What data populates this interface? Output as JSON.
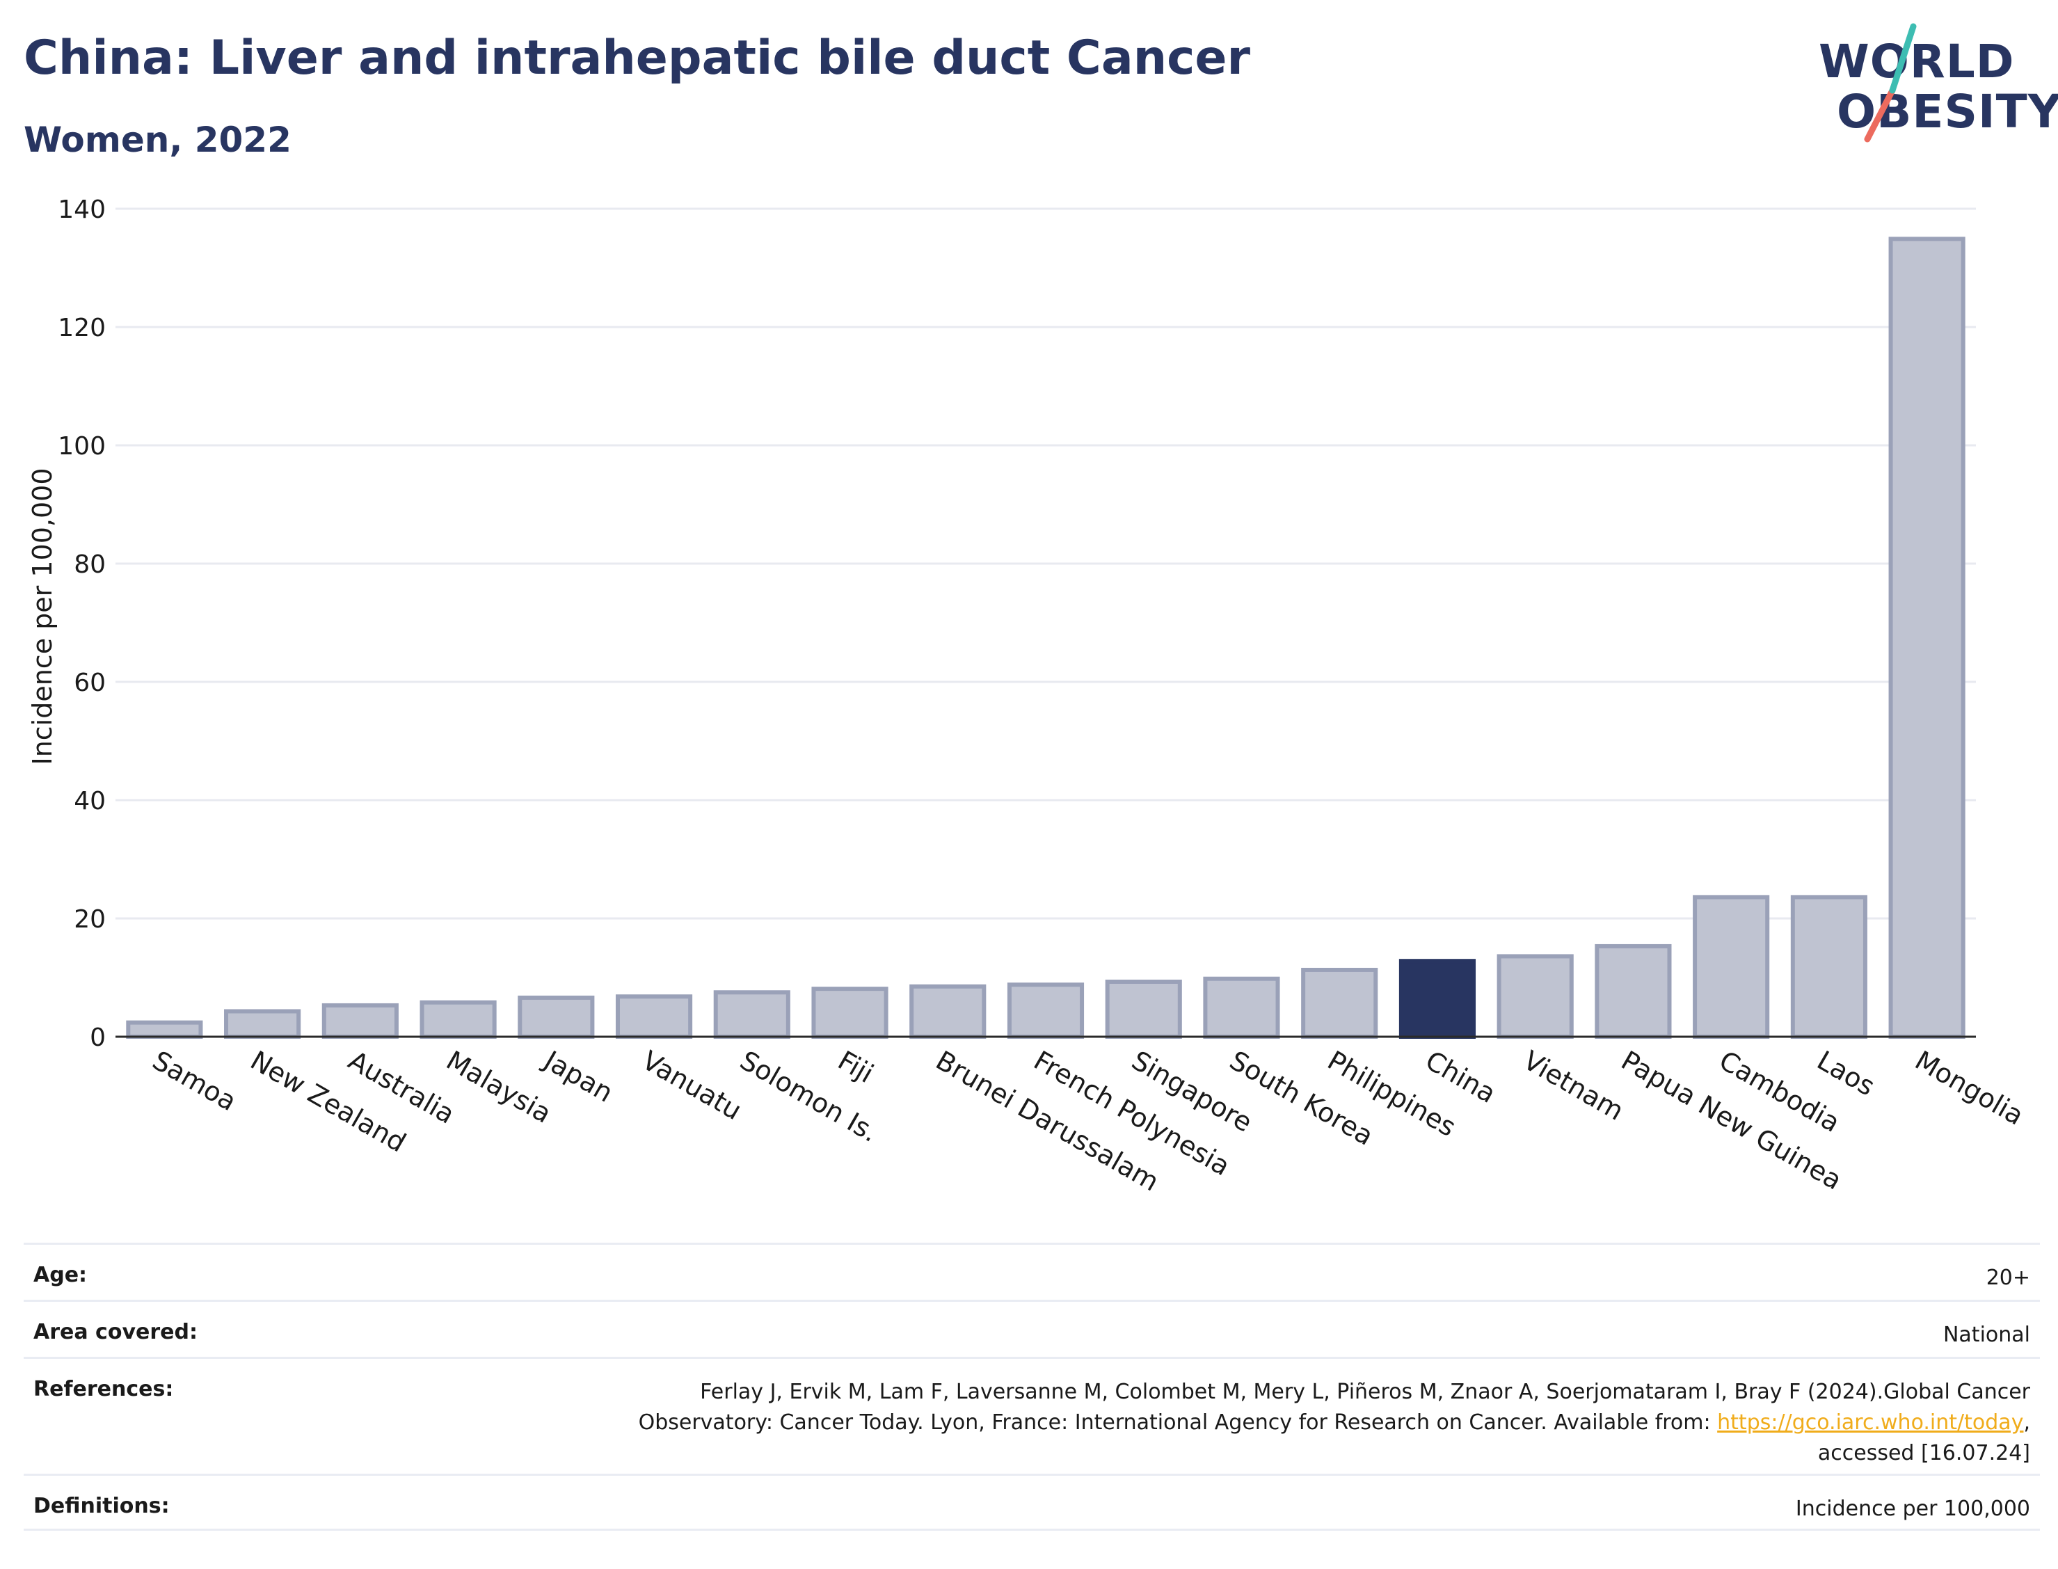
{
  "title": "China: Liver and intrahepatic bile duct Cancer",
  "subtitle": "Women, 2022",
  "logo": {
    "line1": "WORLD",
    "line2": "OBESITY"
  },
  "colors": {
    "highlight": "#283561",
    "bar": "#bfc3d1",
    "bar_border": "#9aa1b8",
    "title": "#283561",
    "link": "#f0ac1b"
  },
  "chart_data": {
    "type": "bar",
    "ylabel": "Incidence per 100,000",
    "ylim": [
      0,
      140
    ],
    "yticks": [
      0,
      20,
      40,
      60,
      80,
      100,
      120,
      140
    ],
    "grid": true,
    "highlight": "China",
    "categories": [
      "Samoa",
      "New Zealand",
      "Australia",
      "Malaysia",
      "Japan",
      "Vanuatu",
      "Solomon Is.",
      "Fiji",
      "Brunei Darussalam",
      "French Polynesia",
      "Singapore",
      "South Korea",
      "Philippines",
      "China",
      "Vietnam",
      "Papua New Guinea",
      "Cambodia",
      "Laos",
      "Mongolia"
    ],
    "values": [
      2.4,
      4.3,
      5.3,
      5.8,
      6.6,
      6.8,
      7.5,
      8.1,
      8.5,
      8.8,
      9.3,
      9.8,
      11.3,
      12.8,
      13.6,
      15.3,
      23.6,
      23.6,
      134.9
    ]
  },
  "info": {
    "age_label": "Age:",
    "age_value": "20+",
    "area_label": "Area covered:",
    "area_value": "National",
    "ref_label": "References:",
    "ref_line1": "Ferlay J, Ervik M, Lam F, Laversanne M, Colombet M, Mery L, Piñeros M, Znaor A, Soerjomataram I, Bray F (2024).Global Cancer",
    "ref_line2_pre": "Observatory: Cancer Today. Lyon, France: International Agency for Research on Cancer. Available from: ",
    "ref_link": "https://gco.iarc.who.int/today",
    "ref_line2_post": ",",
    "ref_line3": "accessed [16.07.24]",
    "def_label": "Definitions:",
    "def_value": "Incidence per 100,000"
  }
}
